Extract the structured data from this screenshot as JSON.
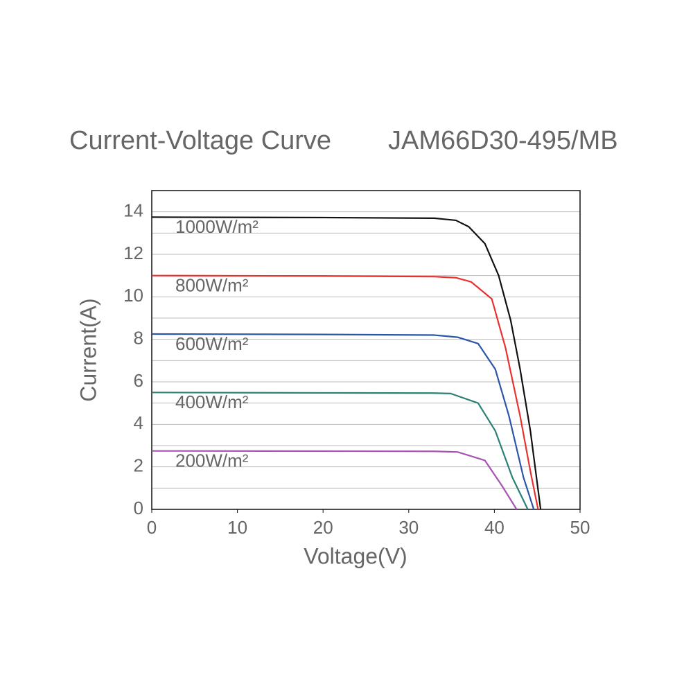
{
  "chart_data": {
    "type": "line",
    "title": "Current-Voltage Curve",
    "subtitle": "JAM66D30-495/MB",
    "x_label": "Voltage(V)",
    "y_label": "Current(A)",
    "xlim": [
      0,
      50
    ],
    "xticks": [
      0,
      10,
      20,
      30,
      40,
      50
    ],
    "ylim": [
      0,
      15
    ],
    "yticks": [
      0,
      2,
      4,
      6,
      8,
      10,
      12,
      14
    ],
    "y_minor_grid": [
      1,
      3,
      5,
      7,
      9,
      11,
      13
    ],
    "grid": true,
    "series": [
      {
        "name": "1000W/m²",
        "color": "#111111",
        "x": [
          0,
          20,
          33,
          35.5,
          37,
          38.9,
          40.5,
          41.9,
          43,
          44.2,
          45.4
        ],
        "values": [
          13.75,
          13.73,
          13.7,
          13.6,
          13.3,
          12.5,
          11.0,
          8.9,
          6.6,
          3.7,
          0
        ]
      },
      {
        "name": "800W/m²",
        "color": "#e8312f",
        "x": [
          0,
          20,
          33,
          35.5,
          37.3,
          39.7,
          41.3,
          43,
          44.2,
          45.1
        ],
        "values": [
          11.0,
          10.98,
          10.95,
          10.9,
          10.7,
          9.9,
          7.6,
          4.4,
          1.8,
          0
        ]
      },
      {
        "name": "600W/m²",
        "color": "#2a55a8",
        "x": [
          0,
          20,
          33,
          35.7,
          38.1,
          40.1,
          41.7,
          43.4,
          44.6
        ],
        "values": [
          8.25,
          8.23,
          8.2,
          8.1,
          7.8,
          6.6,
          4.4,
          1.5,
          0
        ]
      },
      {
        "name": "400W/m²",
        "color": "#2a8077",
        "x": [
          0,
          20,
          33,
          34.9,
          38.1,
          40.1,
          42.1,
          43.9
        ],
        "values": [
          5.5,
          5.48,
          5.47,
          5.45,
          5.0,
          3.7,
          1.5,
          0
        ]
      },
      {
        "name": "200W/m²",
        "color": "#a555b0",
        "x": [
          0,
          20,
          33,
          35.7,
          38.9,
          40.9,
          42.6
        ],
        "values": [
          2.75,
          2.74,
          2.73,
          2.7,
          2.3,
          1.1,
          0
        ]
      }
    ]
  }
}
